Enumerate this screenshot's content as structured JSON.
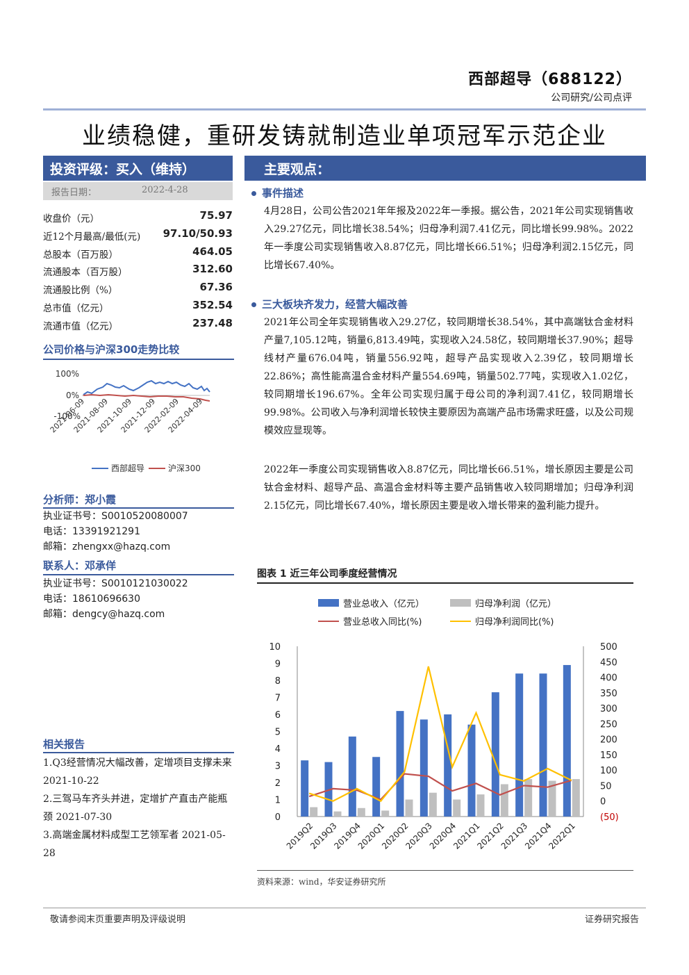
{
  "header": {
    "company": "西部超导（688122）",
    "report_type": "公司研究/公司点评",
    "title": "业绩稳健，重研发铸就制造业单项冠军示范企业"
  },
  "sidebar": {
    "rating": "投资评级：买入（维持）",
    "date_label": "报告日期：",
    "date_value": "2022-4-28",
    "stats": [
      {
        "label": "收盘价（元）",
        "value": "75.97"
      },
      {
        "label": "近12个月最高/最低(元)",
        "value": "97.10/50.93"
      },
      {
        "label": "总股本（百万股）",
        "value": "464.05"
      },
      {
        "label": "流通股本（百万股）",
        "value": "312.60"
      },
      {
        "label": "流通股比例（%）",
        "value": "67.36"
      },
      {
        "label": "总市值（亿元）",
        "value": "352.54"
      },
      {
        "label": "流通市值（亿元）",
        "value": "237.48"
      }
    ],
    "price_chart_title": "公司价格与沪深300走势比较",
    "price_chart": {
      "y_ticks": [
        "100%",
        "0%",
        "-100%"
      ],
      "x_ticks": [
        "2021-06-09",
        "2021-08-09",
        "2021-10-09",
        "2021-12-09",
        "2022-02-09",
        "2022-04-09"
      ],
      "legend": [
        "西部超导",
        "沪深300"
      ]
    },
    "analyst_title": "分析师：郑小霞",
    "analyst_lines": [
      "执业证书号：S0010520080007",
      "电话：13391921291",
      "邮箱：zhengxx@hazq.com"
    ],
    "contact_title": "联系人：邓承佯",
    "contact_lines": [
      "执业证书号：S0010121030022",
      "电话：18610696630",
      "邮箱：dengcy@hazq.com"
    ],
    "related_title": "相关报告",
    "related": [
      "1.Q3经营情况大幅改善，定增项目支撑未来 2021-10-22",
      "2.三驾马车齐头并进，定增扩产直击产能瓶颈 2021-07-30",
      "3.高端金属材料成型工艺领军者 2021-05-28"
    ]
  },
  "main": {
    "heading": "主要观点：",
    "sections": [
      {
        "title": "事件描述",
        "paragraphs": [
          "4月28日，公司公告2021年年报及2022年一季报。据公告，2021年公司实现销售收入29.27亿元，同比增长38.54%；归母净利润7.41亿元，同比增长99.98%。2022年一季度公司实现销售收入8.87亿元，同比增长66.51%；归母净利润2.15亿元，同比增长67.40%。"
        ]
      },
      {
        "title": "三大板块齐发力，经营大幅改善",
        "paragraphs": [
          "2021年公司全年实现销售收入29.27亿，较同期增长38.54%，其中高端钛合金材料产量7,105.12吨，销量6,813.49吨，实现收入24.58亿，较同期增长37.90%；超导线材产量676.04吨，销量556.92吨，超导产品实现收入2.39亿，较同期增长22.86%；高性能高温合金材料产量554.69吨，销量502.77吨，实现收入1.02亿，较同期增长196.67%。全年公司实现归属于母公司的净利润7.41亿，较同期增长99.98%。公司收入与净利润增长较快主要原因为高端产品市场需求旺盛，以及公司规模效应显现等。",
          "2022年一季度公司实现销售收入8.87亿元，同比增长66.51%，增长原因主要是公司钛合金材料、超导产品、高温合金材料等主要产品销售收入较同期增加；归母净利润2.15亿元，同比增长67.40%，增长原因主要是收入增长带来的盈利能力提升。"
        ]
      }
    ],
    "figure_title": "图表 1 近三年公司季度经营情况",
    "source": "资料来源：wind，华安证券研究所"
  },
  "chart_data": {
    "type": "bar",
    "categories": [
      "2019Q2",
      "2019Q3",
      "2019Q4",
      "2020Q1",
      "2020Q2",
      "2020Q3",
      "2020Q4",
      "2021Q1",
      "2021Q2",
      "2021Q3",
      "2021Q4",
      "2022Q1"
    ],
    "series": [
      {
        "name": "营业总收入（亿元）",
        "type": "bar",
        "axis": "left",
        "color": "#4472c4",
        "values": [
          3.3,
          3.2,
          4.7,
          3.5,
          6.2,
          5.7,
          6.0,
          5.4,
          7.3,
          8.4,
          8.4,
          8.9
        ]
      },
      {
        "name": "归母净利润（亿元）",
        "type": "bar",
        "axis": "left",
        "color": "#bfbfbf",
        "values": [
          0.55,
          0.3,
          0.5,
          0.35,
          1.0,
          1.4,
          1.0,
          1.3,
          1.9,
          2.2,
          2.1,
          2.2
        ]
      },
      {
        "name": "营业总收入同比(%)",
        "type": "line",
        "axis": "right",
        "color": "#c0504d",
        "values": [
          15,
          40,
          35,
          5,
          88,
          80,
          33,
          57,
          20,
          50,
          45,
          67
        ]
      },
      {
        "name": "归母净利润同比(%)",
        "type": "line",
        "axis": "right",
        "color": "#ffc000",
        "values": [
          25,
          0,
          40,
          0,
          95,
          435,
          110,
          285,
          85,
          65,
          105,
          67
        ]
      }
    ],
    "ylim_left": [
      0,
      10
    ],
    "yticks_left": [
      0,
      1,
      2,
      3,
      4,
      5,
      6,
      7,
      8,
      9,
      10
    ],
    "ylim_right": [
      -50,
      500
    ],
    "yticks_right": [
      -50,
      0,
      50,
      100,
      150,
      200,
      250,
      300,
      350,
      400,
      450,
      500
    ],
    "ytick_labels_right": [
      "(50)",
      "0",
      "50",
      "100",
      "150",
      "200",
      "250",
      "300",
      "350",
      "400",
      "450",
      "500"
    ],
    "legend": "top"
  },
  "footer": {
    "left": "敬请参阅末页重要声明及评级说明",
    "right": "证券研究报告"
  }
}
